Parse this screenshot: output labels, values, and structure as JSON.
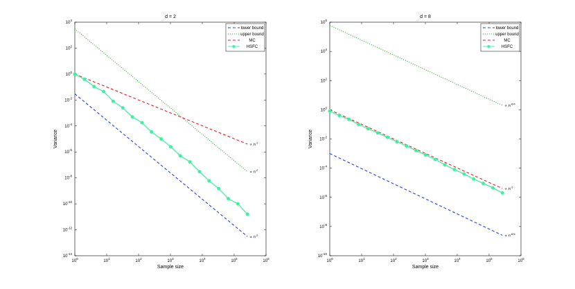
{
  "chart_data": [
    {
      "type": "line",
      "title": "d = 2",
      "xlabel": "Sample size",
      "ylabel": "Variance",
      "xscale": "log",
      "yscale": "log",
      "xlim": [
        1,
        1000000
      ],
      "ylim": [
        1e-14,
        10000
      ],
      "xticks": [
        {
          "v": 1,
          "base": "10",
          "exp": "0"
        },
        {
          "v": 10,
          "base": "10",
          "exp": "1"
        },
        {
          "v": 100,
          "base": "10",
          "exp": "2"
        },
        {
          "v": 1000,
          "base": "10",
          "exp": "3"
        },
        {
          "v": 10000,
          "base": "10",
          "exp": "4"
        },
        {
          "v": 100000,
          "base": "10",
          "exp": "5"
        },
        {
          "v": 1000000,
          "base": "10",
          "exp": "6"
        }
      ],
      "yticks": [
        {
          "v": 1e-14,
          "base": "10",
          "exp": "-14"
        },
        {
          "v": 1e-12,
          "base": "10",
          "exp": "-12"
        },
        {
          "v": 1e-10,
          "base": "10",
          "exp": "-10"
        },
        {
          "v": 1e-08,
          "base": "10",
          "exp": "-8"
        },
        {
          "v": 1e-06,
          "base": "10",
          "exp": "-6"
        },
        {
          "v": 0.0001,
          "base": "10",
          "exp": "-4"
        },
        {
          "v": 0.01,
          "base": "10",
          "exp": "-2"
        },
        {
          "v": 1,
          "base": "10",
          "exp": "0"
        },
        {
          "v": 100,
          "base": "10",
          "exp": "2"
        },
        {
          "v": 10000,
          "base": "10",
          "exp": "4"
        }
      ],
      "legend_position": "top-right",
      "grid": false,
      "series": [
        {
          "name": "lower bound",
          "color": "#2040e0",
          "dash": "dashed",
          "marker": "none",
          "x": [
            1,
            262144
          ],
          "y": [
            0.03,
            3e-13
          ]
        },
        {
          "name": "upper bound",
          "color": "#22a022",
          "dash": "dotted",
          "marker": "none",
          "x": [
            1,
            262144
          ],
          "y": [
            3000,
            3e-08
          ]
        },
        {
          "name": "MC",
          "color": "#e02020",
          "dash": "dashed",
          "marker": "none",
          "x": [
            1,
            262144
          ],
          "y": [
            1,
            4e-06
          ]
        },
        {
          "name": "HSFC",
          "color": "#40f0a0",
          "dash": "solid",
          "marker": "circle",
          "x": [
            1,
            2,
            4,
            8,
            16,
            32,
            64,
            128,
            256,
            512,
            1024,
            2048,
            4096,
            8192,
            16384,
            32768,
            65536,
            131072,
            262144
          ],
          "y": [
            1,
            0.4,
            0.11,
            0.045,
            0.008,
            0.0025,
            0.0005,
            0.00018,
            3.5e-05,
            1e-05,
            2.5e-06,
            5e-07,
            1.7e-07,
            3e-08,
            6e-09,
            1.5e-09,
            2.5e-10,
            1e-10,
            1.6e-11
          ]
        }
      ],
      "annotations": [
        {
          "text": "∝ n",
          "exp": "-1",
          "x": 262144,
          "y": 4e-06
        },
        {
          "text": "∝ n",
          "exp": "-2",
          "x": 262144,
          "y": 3e-08
        },
        {
          "text": "∝ n",
          "exp": "-2",
          "x": 262144,
          "y": 3e-13
        }
      ]
    },
    {
      "type": "line",
      "title": "d = 8",
      "xlabel": "Sample size",
      "ylabel": "Variance",
      "xscale": "log",
      "yscale": "log",
      "xlim": [
        1,
        1000000
      ],
      "ylim": [
        1e-10,
        1000000.0
      ],
      "xticks": [
        {
          "v": 1,
          "base": "10",
          "exp": "0"
        },
        {
          "v": 10,
          "base": "10",
          "exp": "1"
        },
        {
          "v": 100,
          "base": "10",
          "exp": "2"
        },
        {
          "v": 1000,
          "base": "10",
          "exp": "3"
        },
        {
          "v": 10000,
          "base": "10",
          "exp": "4"
        },
        {
          "v": 100000,
          "base": "10",
          "exp": "5"
        },
        {
          "v": 1000000,
          "base": "10",
          "exp": "6"
        }
      ],
      "yticks": [
        {
          "v": 1e-10,
          "base": "10",
          "exp": "-10"
        },
        {
          "v": 1e-08,
          "base": "10",
          "exp": "-8"
        },
        {
          "v": 1e-06,
          "base": "10",
          "exp": "-6"
        },
        {
          "v": 0.0001,
          "base": "10",
          "exp": "-4"
        },
        {
          "v": 0.01,
          "base": "10",
          "exp": "-2"
        },
        {
          "v": 1,
          "base": "10",
          "exp": "0"
        },
        {
          "v": 100,
          "base": "10",
          "exp": "2"
        },
        {
          "v": 10000,
          "base": "10",
          "exp": "4"
        },
        {
          "v": 1000000.0,
          "base": "10",
          "exp": "6"
        }
      ],
      "legend_position": "top-right",
      "grid": false,
      "series": [
        {
          "name": "lower bound",
          "color": "#2040e0",
          "dash": "dashed",
          "marker": "none",
          "x": [
            1,
            262144
          ],
          "y": [
            0.001,
            2.5e-09
          ]
        },
        {
          "name": "upper bound",
          "color": "#22a022",
          "dash": "dotted",
          "marker": "none",
          "x": [
            1,
            262144
          ],
          "y": [
            600000,
            2
          ]
        },
        {
          "name": "MC",
          "color": "#e02020",
          "dash": "dashed",
          "marker": "none",
          "x": [
            1,
            262144
          ],
          "y": [
            1,
            4e-06
          ]
        },
        {
          "name": "HSFC",
          "color": "#40f0a0",
          "dash": "solid",
          "marker": "circle",
          "x": [
            1,
            2,
            4,
            8,
            16,
            32,
            64,
            128,
            256,
            512,
            1024,
            2048,
            4096,
            8192,
            16384,
            32768,
            65536,
            131072,
            262144
          ],
          "y": [
            0.8,
            0.4,
            0.22,
            0.1,
            0.05,
            0.026,
            0.013,
            0.0065,
            0.0033,
            0.0016,
            0.0008,
            0.0004,
            0.00017,
            8e-05,
            4e-05,
            1.8e-05,
            9e-06,
            4.5e-06,
            2e-06
          ]
        }
      ],
      "annotations": [
        {
          "text": "∝ n",
          "exp": "-1",
          "x": 262144,
          "y": 4e-06
        },
        {
          "text": "∝ n",
          "exp": "-6/4",
          "x": 262144,
          "y": 2
        },
        {
          "text": "∝ n",
          "exp": "-6/4",
          "x": 262144,
          "y": 2.5e-09
        }
      ]
    }
  ]
}
